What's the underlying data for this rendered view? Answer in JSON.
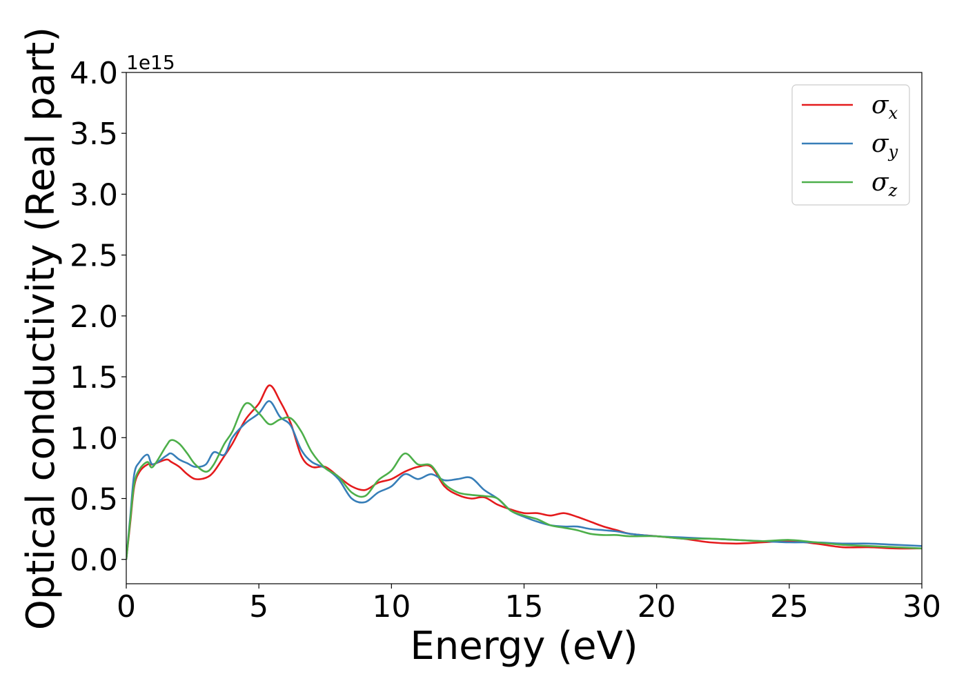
{
  "chart_data": {
    "type": "line",
    "title": "",
    "xlabel": "Energy (eV)",
    "ylabel": "Optical conductivity (Real part)",
    "y_offset_label": "1e15",
    "xlim": [
      0,
      30
    ],
    "ylim": [
      -0.2,
      4.0
    ],
    "xticks": [
      0,
      5,
      10,
      15,
      20,
      25,
      30
    ],
    "xtick_labels": [
      "0",
      "5",
      "10",
      "15",
      "20",
      "25",
      "30"
    ],
    "yticks": [
      0.0,
      0.5,
      1.0,
      1.5,
      2.0,
      2.5,
      3.0,
      3.5,
      4.0
    ],
    "ytick_labels": [
      "0.0",
      "0.5",
      "1.0",
      "1.5",
      "2.0",
      "2.5",
      "3.0",
      "3.5",
      "4.0"
    ],
    "grid": false,
    "legend_position": "top-right",
    "series": [
      {
        "name": "σx",
        "symbol": "σ",
        "subscript": "x",
        "color": "#e41a1c",
        "x": [
          0,
          0.15,
          0.3,
          0.5,
          0.8,
          1.0,
          1.5,
          1.7,
          2.0,
          2.3,
          2.6,
          3.0,
          3.3,
          3.7,
          4.0,
          4.5,
          5.0,
          5.4,
          5.8,
          6.2,
          6.6,
          7.0,
          7.5,
          8.0,
          8.5,
          9.0,
          9.5,
          10.0,
          10.5,
          11.0,
          11.5,
          12.0,
          12.5,
          13.0,
          13.5,
          14.0,
          14.5,
          15.0,
          15.5,
          16.0,
          16.5,
          17.0,
          17.5,
          18.0,
          18.5,
          19.0,
          20.0,
          21.0,
          22.0,
          23.0,
          24.0,
          25.0,
          26.0,
          27.0,
          28.0,
          29.0,
          30.0
        ],
        "y": [
          0.0,
          0.3,
          0.6,
          0.72,
          0.78,
          0.78,
          0.82,
          0.8,
          0.76,
          0.7,
          0.66,
          0.67,
          0.72,
          0.85,
          0.95,
          1.15,
          1.28,
          1.43,
          1.3,
          1.12,
          0.85,
          0.76,
          0.76,
          0.68,
          0.6,
          0.57,
          0.63,
          0.66,
          0.72,
          0.76,
          0.76,
          0.6,
          0.53,
          0.5,
          0.51,
          0.45,
          0.41,
          0.38,
          0.38,
          0.36,
          0.38,
          0.35,
          0.31,
          0.27,
          0.24,
          0.21,
          0.19,
          0.17,
          0.14,
          0.13,
          0.14,
          0.15,
          0.13,
          0.1,
          0.1,
          0.09,
          0.09
        ]
      },
      {
        "name": "σy",
        "symbol": "σ",
        "subscript": "y",
        "color": "#377eb8",
        "x": [
          0,
          0.15,
          0.3,
          0.5,
          0.8,
          1.0,
          1.5,
          1.7,
          2.0,
          2.3,
          2.6,
          3.0,
          3.3,
          3.7,
          4.0,
          4.5,
          5.0,
          5.4,
          5.8,
          6.2,
          6.6,
          7.0,
          7.5,
          8.0,
          8.5,
          9.0,
          9.5,
          10.0,
          10.5,
          11.0,
          11.5,
          12.0,
          12.5,
          13.0,
          13.5,
          14.0,
          14.5,
          15.0,
          15.5,
          16.0,
          16.5,
          17.0,
          17.5,
          18.0,
          18.5,
          19.0,
          20.0,
          21.0,
          22.0,
          23.0,
          24.0,
          25.0,
          26.0,
          27.0,
          28.0,
          29.0,
          30.0
        ],
        "y": [
          0.0,
          0.35,
          0.7,
          0.8,
          0.86,
          0.78,
          0.85,
          0.87,
          0.82,
          0.79,
          0.76,
          0.78,
          0.88,
          0.86,
          1.0,
          1.12,
          1.2,
          1.3,
          1.17,
          1.1,
          0.9,
          0.8,
          0.75,
          0.66,
          0.5,
          0.47,
          0.55,
          0.6,
          0.7,
          0.66,
          0.7,
          0.65,
          0.66,
          0.67,
          0.57,
          0.5,
          0.4,
          0.35,
          0.31,
          0.28,
          0.27,
          0.27,
          0.25,
          0.24,
          0.23,
          0.21,
          0.19,
          0.18,
          0.17,
          0.16,
          0.15,
          0.14,
          0.14,
          0.13,
          0.13,
          0.12,
          0.11
        ]
      },
      {
        "name": "σz",
        "symbol": "σ",
        "subscript": "z",
        "color": "#4daf4a",
        "x": [
          0,
          0.15,
          0.3,
          0.5,
          0.8,
          1.0,
          1.5,
          1.7,
          2.0,
          2.3,
          2.6,
          3.0,
          3.3,
          3.7,
          4.0,
          4.5,
          5.0,
          5.4,
          5.8,
          6.2,
          6.6,
          7.0,
          7.5,
          8.0,
          8.5,
          9.0,
          9.5,
          10.0,
          10.5,
          11.0,
          11.5,
          12.0,
          12.5,
          13.0,
          13.5,
          14.0,
          14.5,
          15.0,
          15.5,
          16.0,
          16.5,
          17.0,
          17.5,
          18.0,
          18.5,
          19.0,
          20.0,
          21.0,
          22.0,
          23.0,
          24.0,
          25.0,
          26.0,
          27.0,
          28.0,
          29.0,
          30.0
        ],
        "y": [
          0.0,
          0.32,
          0.62,
          0.74,
          0.8,
          0.76,
          0.93,
          0.98,
          0.95,
          0.87,
          0.78,
          0.72,
          0.78,
          0.95,
          1.05,
          1.28,
          1.2,
          1.11,
          1.15,
          1.16,
          1.05,
          0.88,
          0.75,
          0.68,
          0.55,
          0.52,
          0.65,
          0.73,
          0.87,
          0.78,
          0.77,
          0.62,
          0.55,
          0.53,
          0.52,
          0.5,
          0.4,
          0.36,
          0.33,
          0.28,
          0.26,
          0.24,
          0.21,
          0.2,
          0.2,
          0.19,
          0.19,
          0.17,
          0.17,
          0.16,
          0.15,
          0.16,
          0.14,
          0.12,
          0.11,
          0.1,
          0.09
        ]
      }
    ]
  }
}
